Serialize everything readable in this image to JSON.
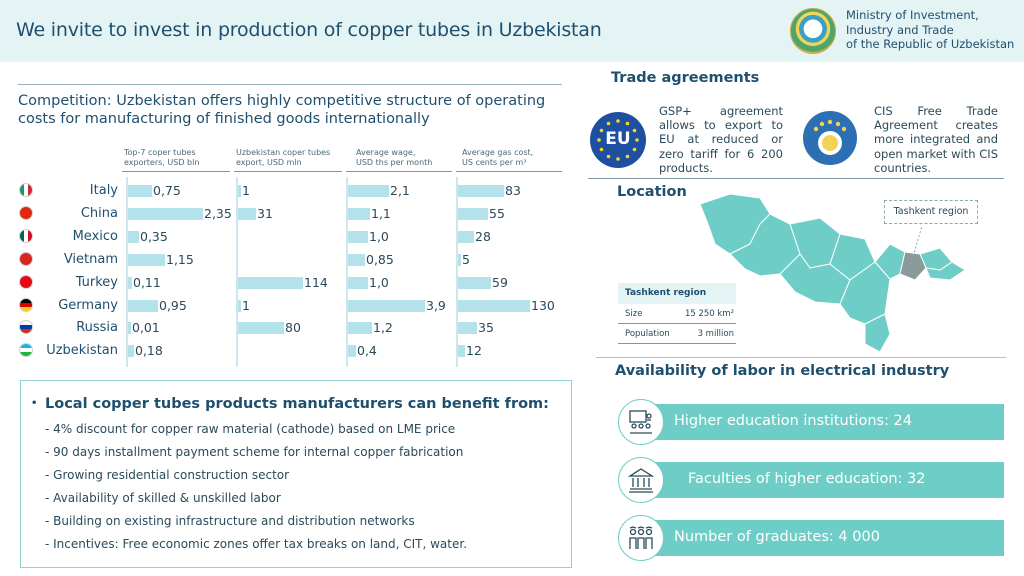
{
  "header": {
    "title": "We invite to invest in production of copper tubes in Uzbekistan",
    "ministry": [
      "Ministry of Investment,",
      "Industry and Trade",
      "of the Republic of Uzbekistan"
    ],
    "emblem_icon": "uzbekistan-state-emblem"
  },
  "competition": {
    "title": "Competition: Uzbekistan offers highly competitive structure of operating costs for manufacturing of finished goods internationally",
    "columns": [
      {
        "title": "Top-7 coper tubes",
        "subtitle": "exporters, USD bln"
      },
      {
        "title": "Uzbekistan coper tubes",
        "subtitle": "export, USD mln"
      },
      {
        "title": "Average wage,",
        "subtitle": "USD ths per month"
      },
      {
        "title": "Average gas cost,",
        "subtitle": "US cents per m³"
      }
    ],
    "rows": [
      {
        "country": "Italy",
        "flag": "italy-flag-icon",
        "exports": "0,75",
        "uz_export": "1",
        "wage": "2,1",
        "gas": "83"
      },
      {
        "country": "China",
        "flag": "china-flag-icon",
        "exports": "2,35",
        "uz_export": "31",
        "wage": "1,1",
        "gas": "55"
      },
      {
        "country": "Mexico",
        "flag": "mexico-flag-icon",
        "exports": "0,35",
        "uz_export": "",
        "wage": "1,0",
        "gas": "28"
      },
      {
        "country": "Vietnam",
        "flag": "vietnam-flag-icon",
        "exports": "1,15",
        "uz_export": "",
        "wage": "0,85",
        "gas": "5"
      },
      {
        "country": "Turkey",
        "flag": "turkey-flag-icon",
        "exports": "0,11",
        "uz_export": "114",
        "wage": "1,0",
        "gas": "59"
      },
      {
        "country": "Germany",
        "flag": "germany-flag-icon",
        "exports": "0,95",
        "uz_export": "1",
        "wage": "3,9",
        "gas": "130"
      },
      {
        "country": "Russia",
        "flag": "russia-flag-icon",
        "exports": "0,01",
        "uz_export": "80",
        "wage": "1,2",
        "gas": "35"
      },
      {
        "country": "Uzbekistan",
        "flag": "uzbekistan-flag-icon",
        "exports": "0,18",
        "uz_export": "",
        "wage": "0,4",
        "gas": "12"
      }
    ]
  },
  "chart_data": [
    {
      "type": "bar",
      "categories": [
        "Italy",
        "China",
        "Mexico",
        "Vietnam",
        "Turkey",
        "Germany",
        "Russia",
        "Uzbekistan"
      ],
      "values": [
        0.75,
        2.35,
        0.35,
        1.15,
        0.11,
        0.95,
        0.01,
        0.18
      ],
      "title": "Top-7 coper tubes exporters, USD bln",
      "orientation": "horizontal"
    },
    {
      "type": "bar",
      "categories": [
        "Italy",
        "China",
        "Mexico",
        "Vietnam",
        "Turkey",
        "Germany",
        "Russia",
        "Uzbekistan"
      ],
      "values": [
        1,
        31,
        null,
        null,
        114,
        1,
        80,
        null
      ],
      "title": "Uzbekistan coper tubes export, USD mln",
      "orientation": "horizontal"
    },
    {
      "type": "bar",
      "categories": [
        "Italy",
        "China",
        "Mexico",
        "Vietnam",
        "Turkey",
        "Germany",
        "Russia",
        "Uzbekistan"
      ],
      "values": [
        2.1,
        1.1,
        1.0,
        0.85,
        1.0,
        3.9,
        1.2,
        0.4
      ],
      "title": "Average wage, USD ths per month",
      "orientation": "horizontal"
    },
    {
      "type": "bar",
      "categories": [
        "Italy",
        "China",
        "Mexico",
        "Vietnam",
        "Turkey",
        "Germany",
        "Russia",
        "Uzbekistan"
      ],
      "values": [
        83,
        55,
        28,
        5,
        59,
        130,
        35,
        12
      ],
      "title": "Average gas cost, US cents per m³",
      "orientation": "horizontal"
    }
  ],
  "benefits": {
    "heading": "Local copper tubes products manufacturers can benefit from:",
    "items": [
      "- 4% discount for copper raw material (cathode) based on LME price",
      "- 90 days installment payment scheme  for internal copper fabrication",
      "- Growing residential construction sector",
      "- Availability of skilled & unskilled labor",
      "- Building on existing infrastructure and distribution networks",
      "-   Incentives: Free economic  zones offer tax breaks on land, CIT, water."
    ]
  },
  "trade": {
    "title": "Trade agreements",
    "eu_logo_text": "EU",
    "gsp_text": "GSP+ agreement allows to export to EU at reduced or zero tariff for 6 200 products.",
    "cis_text": "CIS Free Trade Agreement creates more integrated and open market with CIS countries.",
    "cis_icon": "cis-emblem-icon"
  },
  "location": {
    "title": "Location",
    "map_icon": "uzbekistan-map",
    "highlight_label": "Tashkent region",
    "table": {
      "title": "Tashkent region",
      "rows": [
        {
          "label": "Size",
          "value": "15 250 km²"
        },
        {
          "label": "Population",
          "value": "3 million"
        }
      ]
    },
    "colors": {
      "map_fill": "#6fcdc7",
      "highlight": "#8a9a9a"
    }
  },
  "labor": {
    "title": "Availability of labor in electrical industry",
    "items": [
      {
        "text": "Higher education institutions: 24",
        "icon": "classroom-icon"
      },
      {
        "text": "Faculties of higher education: 32",
        "icon": "university-building-icon"
      },
      {
        "text": "Number of graduates: 4 000",
        "icon": "graduates-icon"
      }
    ]
  },
  "colors": {
    "accent": "#6fcdc7",
    "bar": "#b3e2ea",
    "header_bg": "#e4f4f5",
    "text": "#1f4f6e"
  }
}
